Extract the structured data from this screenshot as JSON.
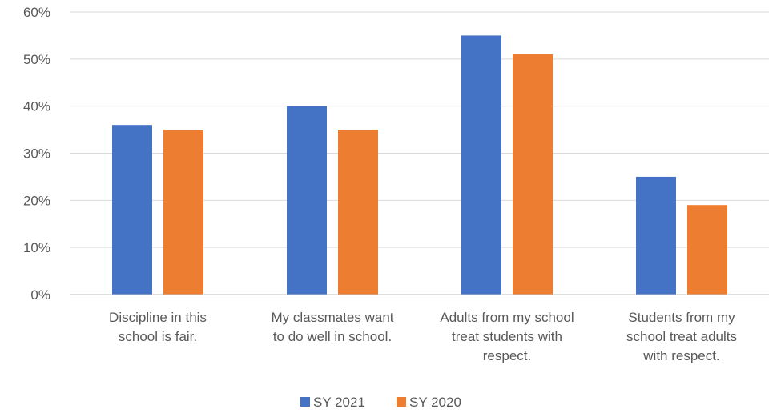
{
  "chart_data": {
    "type": "bar",
    "title": "",
    "xlabel": "",
    "ylabel": "",
    "ylim": [
      0,
      60
    ],
    "yticks": [
      "0%",
      "10%",
      "20%",
      "30%",
      "40%",
      "50%",
      "60%"
    ],
    "categories": [
      [
        "Discipline in this",
        "school is fair."
      ],
      [
        "My classmates want",
        "to do well in school."
      ],
      [
        "Adults from my school",
        "treat students with",
        "respect."
      ],
      [
        "Students from my",
        "school treat adults",
        "with respect."
      ]
    ],
    "series": [
      {
        "name": "SY 2021",
        "color": "#4472c4",
        "values": [
          36,
          40,
          55,
          25
        ]
      },
      {
        "name": "SY 2020",
        "color": "#ed7d31",
        "values": [
          35,
          35,
          51,
          19
        ]
      }
    ],
    "grid": true,
    "legend_position": "bottom"
  }
}
